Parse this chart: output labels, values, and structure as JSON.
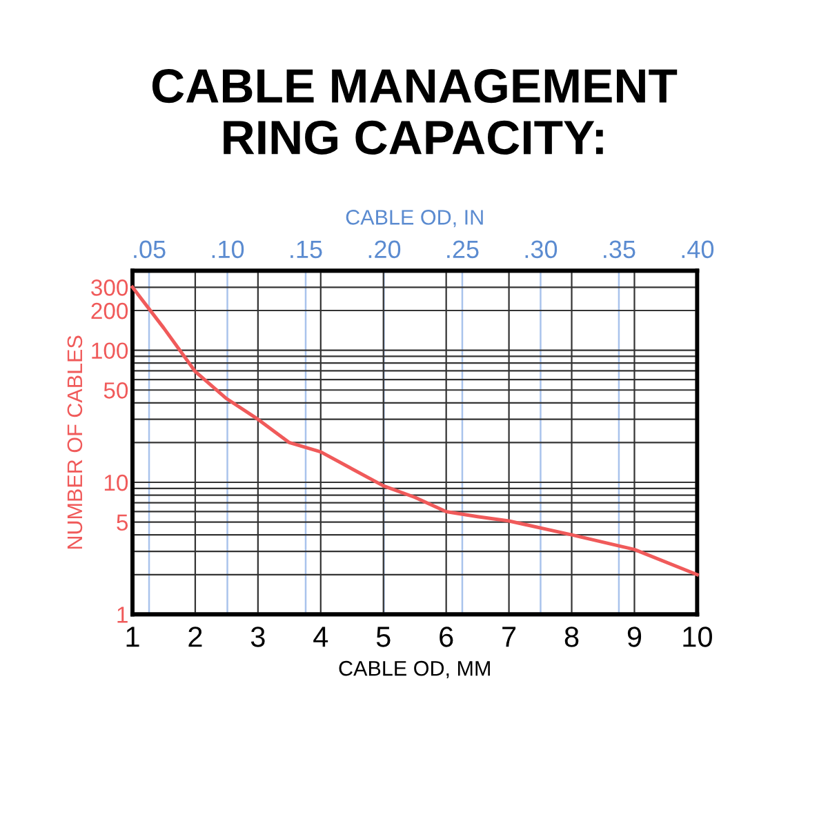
{
  "chart_data": {
    "type": "line",
    "title": "CABLE MANAGEMENT\nRING CAPACITY:",
    "xlabel": "CABLE OD, MM",
    "ylabel": "NUMBER OF CABLES",
    "x2label": "CABLE OD, IN",
    "x": [
      1,
      1.5,
      2,
      2.5,
      3,
      3.5,
      4,
      5,
      5.5,
      6,
      6.5,
      7,
      8,
      9,
      10
    ],
    "series": [
      {
        "color": "#f05a5a",
        "values": [
          300,
          147,
          69,
          43,
          30,
          20,
          17,
          9.4,
          7.7,
          6.0,
          5.5,
          5.1,
          4.0,
          3.1,
          2.0
        ]
      }
    ],
    "log": "y",
    "xlim": [
      1,
      10
    ],
    "xticks": [
      1,
      2,
      3,
      4,
      5,
      6,
      7,
      8,
      9,
      10
    ],
    "ylim": [
      1,
      400
    ],
    "yticks": [
      1,
      5,
      10,
      50,
      100,
      200,
      300
    ],
    "x2lim": [
      0.0394,
      0.4
    ],
    "x2ticks": [
      {
        "value": 0.05,
        "label": ".05"
      },
      {
        "value": 0.1,
        "label": ".10"
      },
      {
        "value": 0.15,
        "label": ".15"
      },
      {
        "value": 0.2,
        "label": ".20"
      },
      {
        "value": 0.25,
        "label": ".25"
      },
      {
        "value": 0.3,
        "label": ".30"
      },
      {
        "value": 0.35,
        "label": ".35"
      },
      {
        "value": 0.4,
        "label": ".40"
      }
    ],
    "grid": true,
    "marker": "none",
    "line_style": "solid"
  }
}
